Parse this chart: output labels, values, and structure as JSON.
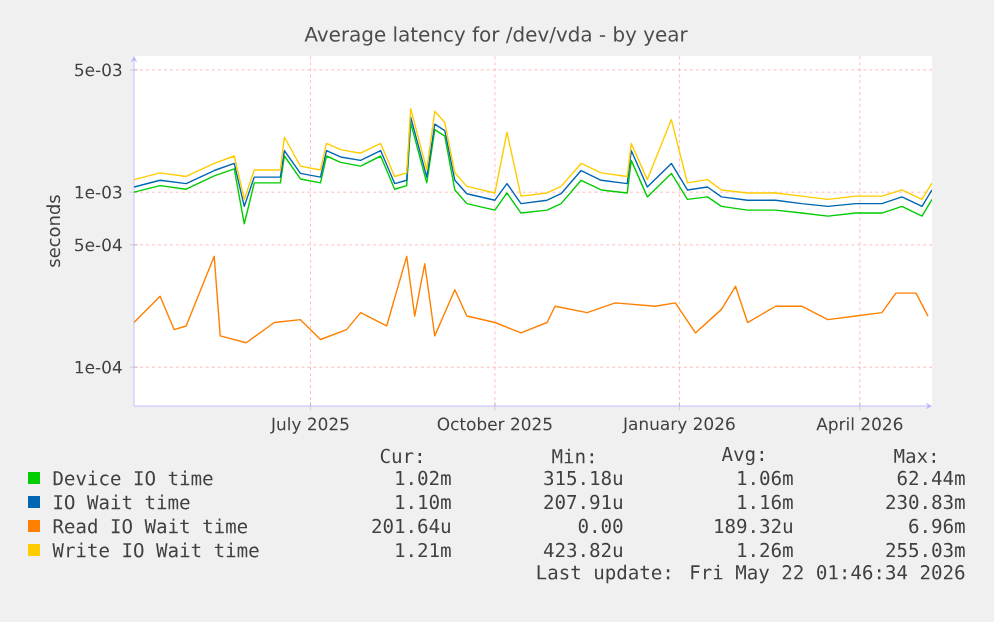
{
  "chart_data": {
    "type": "line",
    "title": "Average latency for /dev/vda - by year",
    "ylabel": "seconds",
    "log": "y",
    "grid": true,
    "legend": "bottom",
    "xlim": [
      "2025-04-19",
      "2026-05-22"
    ],
    "xticks": [
      {
        "value": "2025-07-16",
        "label": "July 2025"
      },
      {
        "value": "2025-10-16",
        "label": "October 2025"
      },
      {
        "value": "2026-01-16",
        "label": "January 2026"
      },
      {
        "value": "2026-04-16",
        "label": "April 2026"
      }
    ],
    "ylim": [
      6e-05,
      0.006
    ],
    "yticks": [
      {
        "value": 0.0001,
        "label": "1e-04"
      },
      {
        "value": 0.0005,
        "label": "5e-04"
      },
      {
        "value": 0.001,
        "label": "1e-03"
      },
      {
        "value": 0.005,
        "label": "5e-03"
      }
    ],
    "x": [
      "2025-04-19",
      "2025-05-02",
      "2025-05-15",
      "2025-05-29",
      "2025-06-08",
      "2025-06-13",
      "2025-06-18",
      "2025-07-01",
      "2025-07-03",
      "2025-07-11",
      "2025-07-21",
      "2025-07-24",
      "2025-07-31",
      "2025-08-10",
      "2025-08-20",
      "2025-08-27",
      "2025-09-02",
      "2025-09-04",
      "2025-09-12",
      "2025-09-16",
      "2025-09-21",
      "2025-09-26",
      "2025-10-02",
      "2025-10-16",
      "2025-10-22",
      "2025-10-29",
      "2025-11-11",
      "2025-11-18",
      "2025-11-28",
      "2025-12-08",
      "2025-12-21",
      "2025-12-23",
      "2025-12-31",
      "2026-01-12",
      "2026-01-20",
      "2026-01-30",
      "2026-02-06",
      "2026-02-19",
      "2026-03-05",
      "2026-03-18",
      "2026-03-31",
      "2026-04-14",
      "2026-04-27",
      "2026-05-07",
      "2026-05-17",
      "2026-05-22"
    ],
    "series": [
      {
        "name": "Device IO time",
        "color": "#00cc00",
        "values": [
          0.001,
          0.00109,
          0.00104,
          0.00124,
          0.00136,
          0.00066,
          0.00113,
          0.00113,
          0.00161,
          0.00119,
          0.00113,
          0.00161,
          0.00148,
          0.00141,
          0.00161,
          0.00104,
          0.00109,
          0.00249,
          0.00113,
          0.00228,
          0.00209,
          0.00103,
          0.00086,
          0.00079,
          0.00099,
          0.00076,
          0.00079,
          0.00086,
          0.00117,
          0.00103,
          0.00099,
          0.00152,
          0.00094,
          0.00128,
          0.00091,
          0.00094,
          0.00083,
          0.00079,
          0.00079,
          0.00076,
          0.00073,
          0.00076,
          0.00076,
          0.00083,
          0.00073,
          0.00091
        ]
      },
      {
        "name": "IO Wait time",
        "color": "#0066b3",
        "values": [
          0.00107,
          0.00117,
          0.00112,
          0.00133,
          0.00146,
          0.00083,
          0.00122,
          0.00122,
          0.00173,
          0.00128,
          0.00122,
          0.00173,
          0.00159,
          0.00152,
          0.00173,
          0.00112,
          0.00117,
          0.00268,
          0.00122,
          0.00245,
          0.00225,
          0.00117,
          0.00098,
          0.0009,
          0.00112,
          0.00086,
          0.0009,
          0.00098,
          0.00133,
          0.00117,
          0.00112,
          0.00173,
          0.00107,
          0.00146,
          0.00103,
          0.00107,
          0.00094,
          0.0009,
          0.0009,
          0.00086,
          0.00083,
          0.00086,
          0.00086,
          0.00094,
          0.00083,
          0.00103
        ]
      },
      {
        "name": "Read IO Wait time",
        "color": "#ff8000",
        "x": [
          "2025-04-19",
          "2025-05-02",
          "2025-05-09",
          "2025-05-15",
          "2025-05-29",
          "2025-06-01",
          "2025-06-14",
          "2025-06-28",
          "2025-07-11",
          "2025-07-21",
          "2025-08-03",
          "2025-08-10",
          "2025-08-23",
          "2025-09-02",
          "2025-09-06",
          "2025-09-11",
          "2025-09-16",
          "2025-09-26",
          "2025-10-02",
          "2025-10-16",
          "2025-10-29",
          "2025-11-11",
          "2025-11-15",
          "2025-12-01",
          "2025-12-15",
          "2026-01-04",
          "2026-01-14",
          "2026-01-24",
          "2026-02-06",
          "2026-02-13",
          "2026-02-19",
          "2026-03-05",
          "2026-03-18",
          "2026-03-31",
          "2026-04-14",
          "2026-04-27",
          "2026-05-04",
          "2026-05-14",
          "2026-05-20"
        ],
        "values": [
          0.00018,
          0.000254,
          0.000164,
          0.000172,
          0.00043,
          0.000151,
          0.000138,
          0.00018,
          0.000187,
          0.000144,
          0.000164,
          0.000205,
          0.000172,
          0.00043,
          0.000196,
          0.00039,
          0.000151,
          0.000277,
          0.000196,
          0.00018,
          0.000157,
          0.00018,
          0.000223,
          0.000205,
          0.000233,
          0.000223,
          0.000233,
          0.000157,
          0.000214,
          0.00029,
          0.00018,
          0.000223,
          0.000223,
          0.000187,
          0.000196,
          0.000205,
          0.000265,
          0.000265,
          0.000196
        ]
      },
      {
        "name": "Write IO Wait time",
        "color": "#ffcc00",
        "values": [
          0.00118,
          0.00129,
          0.00123,
          0.00146,
          0.00161,
          0.00091,
          0.00134,
          0.00134,
          0.00206,
          0.00141,
          0.00134,
          0.0019,
          0.00175,
          0.00167,
          0.0019,
          0.00123,
          0.00129,
          0.003,
          0.00134,
          0.0029,
          0.0025,
          0.00129,
          0.00108,
          0.00099,
          0.0022,
          0.00095,
          0.00099,
          0.00108,
          0.00146,
          0.00129,
          0.00123,
          0.0019,
          0.00118,
          0.0026,
          0.00113,
          0.00118,
          0.00103,
          0.00099,
          0.00099,
          0.00095,
          0.00091,
          0.00095,
          0.00095,
          0.00103,
          0.00091,
          0.00113
        ]
      }
    ],
    "annotations": [
      "Cur:",
      "Min:",
      "Avg:",
      "Max:",
      "1.02m",
      "315.18u",
      "1.06m",
      "62.44m",
      "1.10m",
      "207.91u",
      "1.16m",
      "230.83m",
      "201.64u",
      "0.00",
      "189.32u",
      "6.96m",
      "1.21m",
      "423.82u",
      "1.26m",
      "255.03m",
      "Last update: Fri May 22 01:46:34 2026"
    ]
  }
}
